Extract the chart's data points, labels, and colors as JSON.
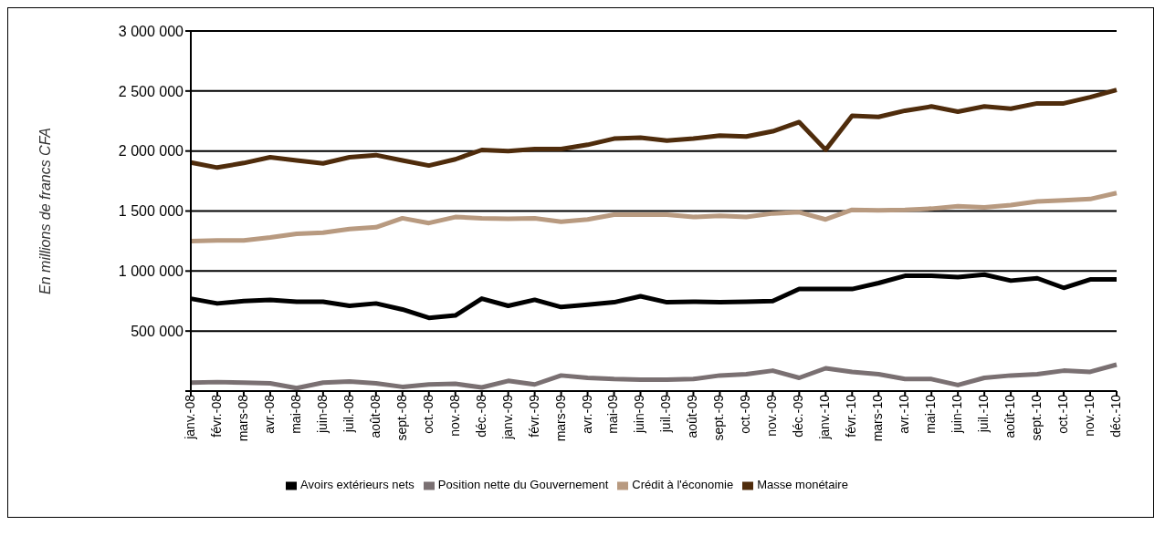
{
  "chart_data": {
    "type": "line",
    "ylabel": "En millions de francs CFA",
    "categories": [
      "janv.-08",
      "févr.-08",
      "mars-08",
      "avr.-08",
      "mai-08",
      "juin-08",
      "juil.-08",
      "août-08",
      "sept.-08",
      "oct.-08",
      "nov.-08",
      "déc.-08",
      "janv.-09",
      "févr.-09",
      "mars-09",
      "avr.-09",
      "mai-09",
      "juin-09",
      "juil.-09",
      "août-09",
      "sept.-09",
      "oct.-09",
      "nov.-09",
      "déc.-09",
      "janv.-10",
      "févr.-10",
      "mars-10",
      "avr.-10",
      "mai-10",
      "juin-10",
      "juil.-10",
      "août-10",
      "sept.-10",
      "oct.-10",
      "nov.-10",
      "déc.-10"
    ],
    "series": [
      {
        "name": "Avoirs extérieurs nets",
        "color": "#000000",
        "values": [
          770000,
          730000,
          750000,
          760000,
          745000,
          745000,
          710000,
          730000,
          680000,
          610000,
          630000,
          770000,
          710000,
          760000,
          700000,
          720000,
          740000,
          790000,
          740000,
          745000,
          740000,
          745000,
          750000,
          850000,
          850000,
          850000,
          900000,
          960000,
          960000,
          950000,
          970000,
          920000,
          940000,
          860000,
          930000,
          930000
        ]
      },
      {
        "name": "Position nette du Gouvernement",
        "color": "#7a7072",
        "values": [
          70000,
          75000,
          70000,
          65000,
          25000,
          70000,
          80000,
          65000,
          35000,
          55000,
          60000,
          30000,
          85000,
          55000,
          130000,
          110000,
          100000,
          95000,
          95000,
          100000,
          130000,
          140000,
          170000,
          110000,
          190000,
          160000,
          140000,
          100000,
          100000,
          50000,
          110000,
          130000,
          140000,
          170000,
          160000,
          220000
        ]
      },
      {
        "name": "Crédit à l'économie",
        "color": "#b89a80",
        "values": [
          1250000,
          1255000,
          1255000,
          1280000,
          1310000,
          1320000,
          1350000,
          1365000,
          1440000,
          1400000,
          1450000,
          1440000,
          1435000,
          1440000,
          1410000,
          1430000,
          1470000,
          1470000,
          1470000,
          1450000,
          1460000,
          1450000,
          1480000,
          1490000,
          1430000,
          1510000,
          1505000,
          1510000,
          1520000,
          1540000,
          1530000,
          1550000,
          1580000,
          1590000,
          1600000,
          1650000
        ]
      },
      {
        "name": "Masse monétaire",
        "color": "#4f2c0c",
        "values": [
          1905000,
          1862000,
          1900000,
          1948000,
          1922000,
          1897000,
          1948000,
          1966000,
          1922000,
          1879000,
          1931000,
          2009000,
          2000000,
          2017000,
          2017000,
          2052000,
          2103000,
          2112000,
          2086000,
          2103000,
          2129000,
          2121000,
          2164000,
          2241000,
          2010000,
          2293000,
          2284000,
          2336000,
          2371000,
          2328000,
          2371000,
          2353000,
          2397000,
          2397000,
          2448000,
          2509000
        ]
      }
    ],
    "ylim": [
      0,
      3000000
    ],
    "yticks": [
      {
        "value": 0,
        "label": null
      },
      {
        "value": 500000,
        "label": "500 000"
      },
      {
        "value": 1000000,
        "label": "1 000 000"
      },
      {
        "value": 1500000,
        "label": "1 500 000"
      },
      {
        "value": 2000000,
        "label": "2 000 000"
      },
      {
        "value": 2500000,
        "label": "2 500 000"
      },
      {
        "value": 3000000,
        "label": "3 000 000"
      }
    ],
    "grid": "y",
    "legend": "bottom",
    "marker": "none",
    "line_style": "solid"
  }
}
